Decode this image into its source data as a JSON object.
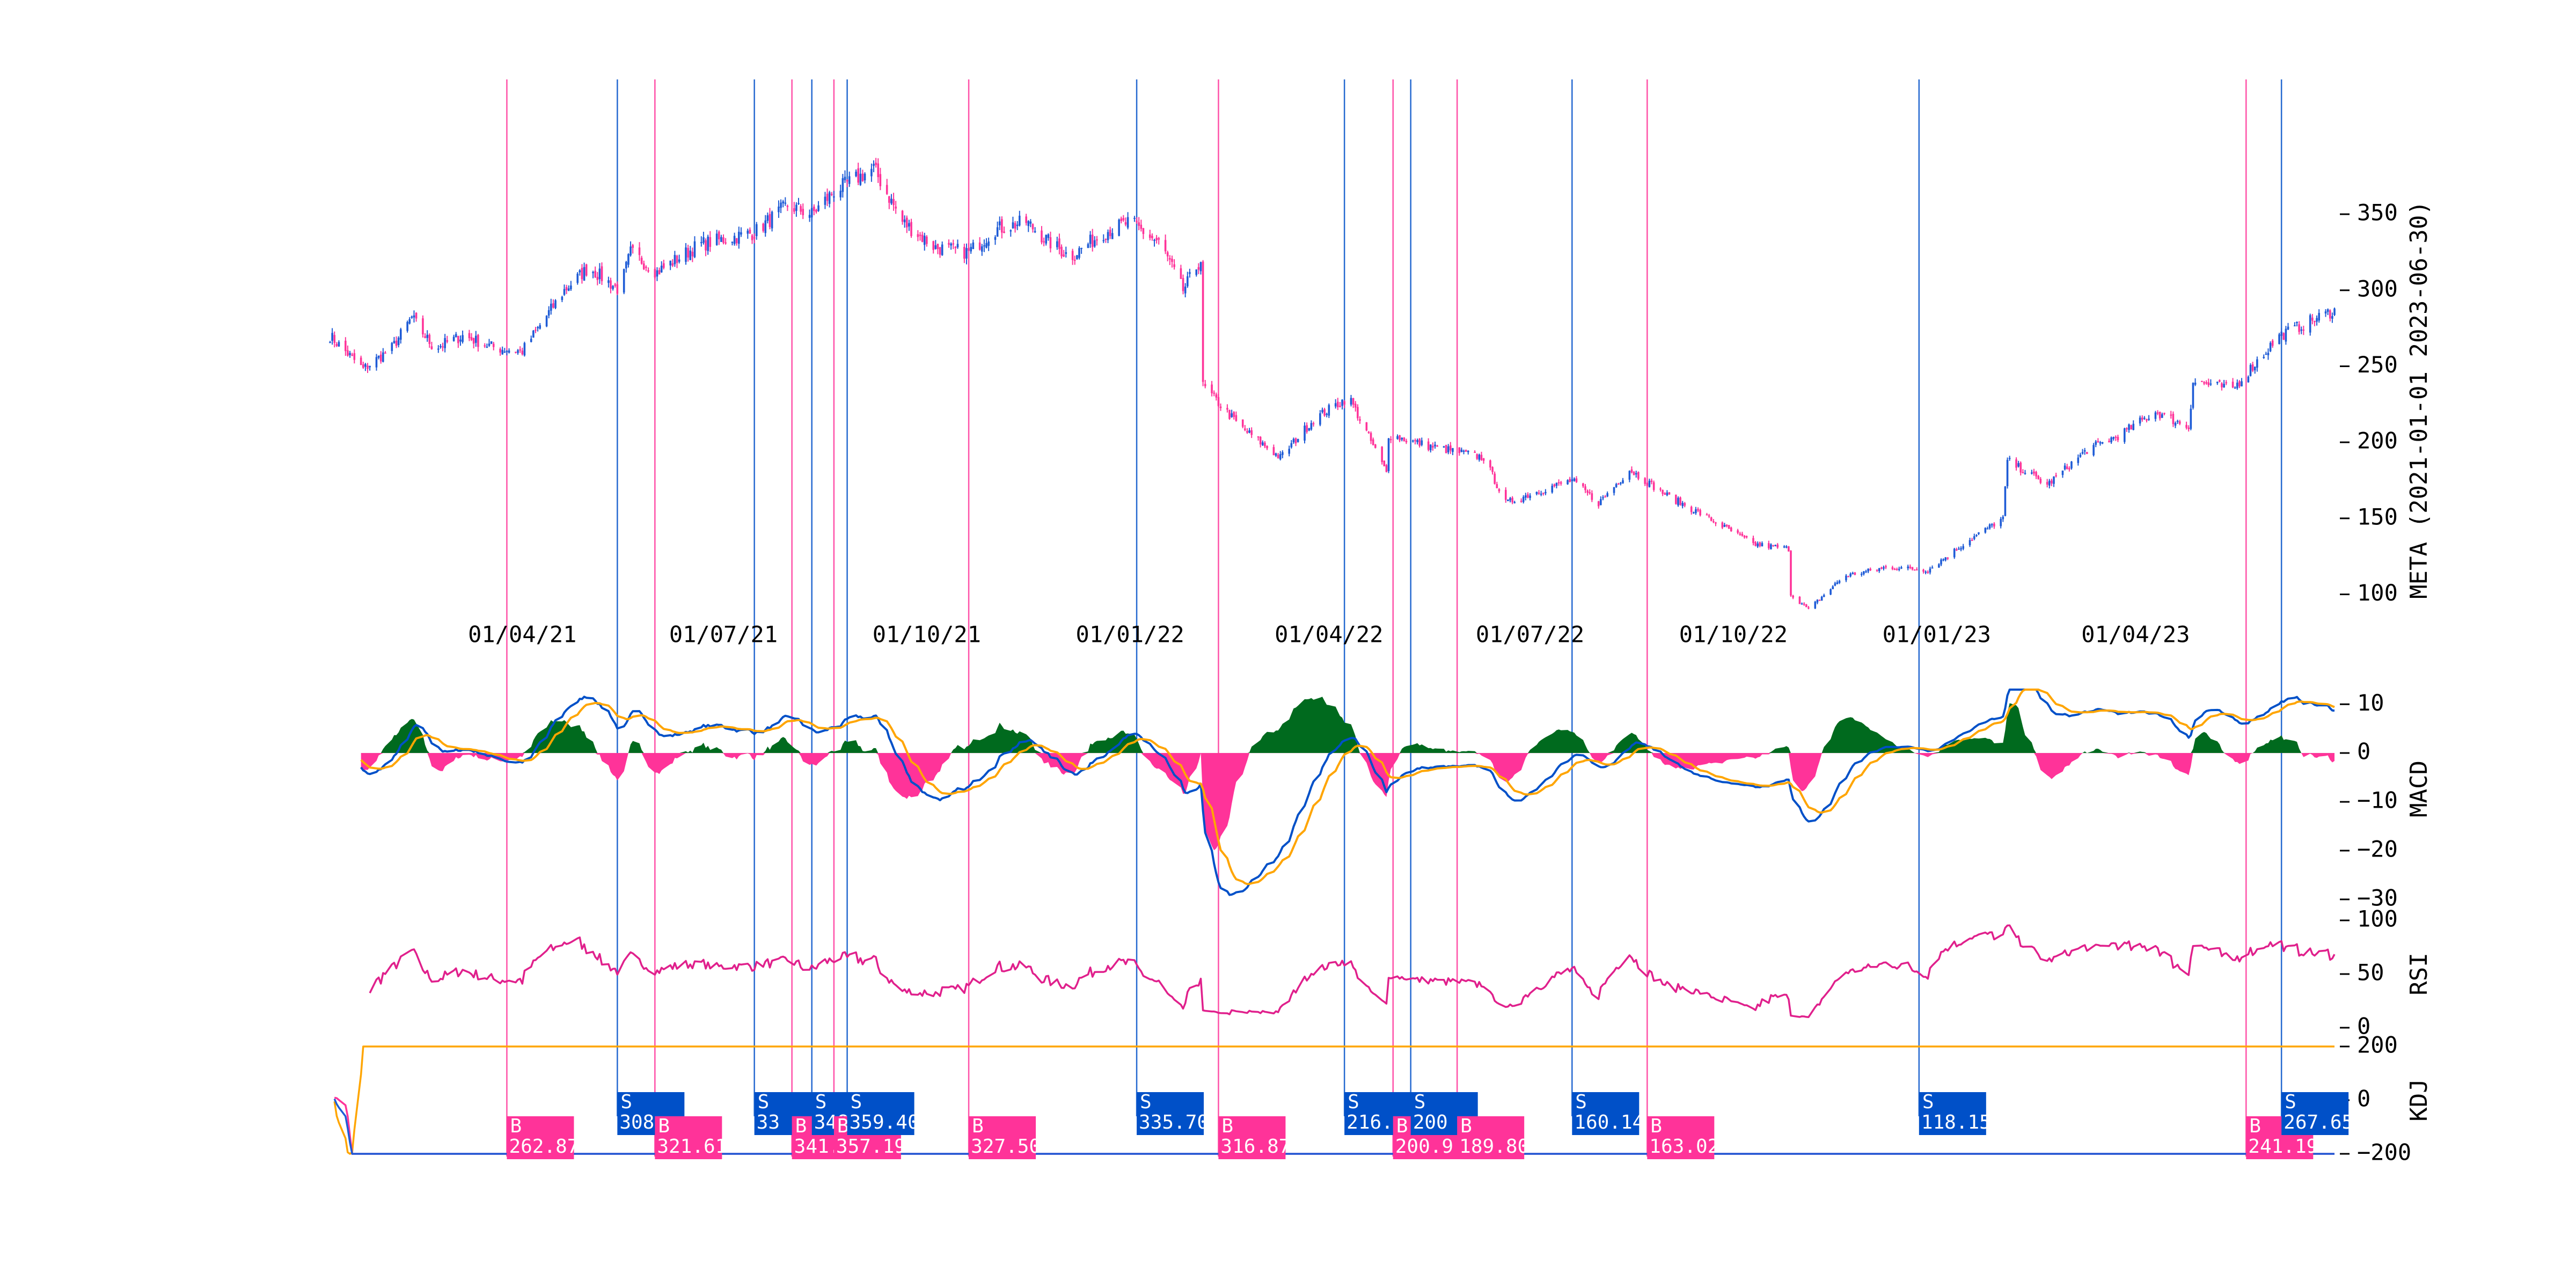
{
  "colors": {
    "up": "#1e5bd6",
    "down": "#ff3399",
    "buy": "#ff3399",
    "sell": "#0050c8",
    "macd_line": "#0050c8",
    "signal_line": "#ffa500",
    "hist_pos": "#006a1e",
    "hist_neg": "#ff3399",
    "rsi": "#e0208c",
    "k": "#1e5bd6",
    "d": "#ff3399",
    "j": "#ffa500"
  },
  "chart_data": [
    {
      "type": "candlestick",
      "ylabel": "META (2021-01-01 2023-06-30)",
      "ylim": [
        85,
        385
      ],
      "yticks": [
        "100",
        "150",
        "200",
        "250",
        "300",
        "350"
      ],
      "x_tick_labels": [
        "01/04/21",
        "01/07/21",
        "01/10/21",
        "01/01/22",
        "01/04/22",
        "01/07/22",
        "01/10/22",
        "01/01/23",
        "01/04/23"
      ],
      "x_tick_dates": [
        "2021-04-01",
        "2021-07-01",
        "2021-10-01",
        "2022-01-01",
        "2022-04-01",
        "2022-07-01",
        "2022-10-01",
        "2023-01-01",
        "2023-04-01"
      ],
      "price_anchors": [
        [
          "2021-01-04",
          270
        ],
        [
          "2021-01-19",
          248
        ],
        [
          "2021-02-01",
          262
        ],
        [
          "2021-02-10",
          282
        ],
        [
          "2021-02-20",
          262
        ],
        [
          "2021-03-05",
          270
        ],
        [
          "2021-03-20",
          262
        ],
        [
          "2021-04-01",
          260
        ],
        [
          "2021-04-20",
          300
        ],
        [
          "2021-05-01",
          315
        ],
        [
          "2021-05-15",
          300
        ],
        [
          "2021-05-20",
          325
        ],
        [
          "2021-06-01",
          312
        ],
        [
          "2021-06-20",
          330
        ],
        [
          "2021-07-15",
          338
        ],
        [
          "2021-07-30",
          356
        ],
        [
          "2021-08-10",
          350
        ],
        [
          "2021-08-20",
          365
        ],
        [
          "2021-09-01",
          375
        ],
        [
          "2021-09-07",
          380
        ],
        [
          "2021-09-20",
          345
        ],
        [
          "2021-10-05",
          328
        ],
        [
          "2021-10-20",
          325
        ],
        [
          "2021-11-01",
          340
        ],
        [
          "2021-11-15",
          345
        ],
        [
          "2021-11-25",
          332
        ],
        [
          "2021-12-05",
          322
        ],
        [
          "2021-12-20",
          338
        ],
        [
          "2022-01-01",
          345
        ],
        [
          "2022-01-15",
          330
        ],
        [
          "2022-01-25",
          300
        ],
        [
          "2022-02-02",
          320
        ],
        [
          "2022-02-03",
          237
        ],
        [
          "2022-02-20",
          210
        ],
        [
          "2022-03-10",
          190
        ],
        [
          "2022-03-25",
          215
        ],
        [
          "2022-04-10",
          230
        ],
        [
          "2022-04-27",
          180
        ],
        [
          "2022-04-28",
          205
        ],
        [
          "2022-05-15",
          198
        ],
        [
          "2022-06-10",
          190
        ],
        [
          "2022-06-20",
          160
        ],
        [
          "2022-07-05",
          168
        ],
        [
          "2022-07-20",
          175
        ],
        [
          "2022-08-01",
          160
        ],
        [
          "2022-08-15",
          182
        ],
        [
          "2022-09-01",
          165
        ],
        [
          "2022-09-20",
          150
        ],
        [
          "2022-10-10",
          133
        ],
        [
          "2022-10-26",
          130
        ],
        [
          "2022-10-27",
          100
        ],
        [
          "2022-11-04",
          90
        ],
        [
          "2022-11-20",
          112
        ],
        [
          "2022-12-10",
          118
        ],
        [
          "2022-12-28",
          116
        ],
        [
          "2023-01-15",
          135
        ],
        [
          "2023-01-31",
          150
        ],
        [
          "2023-02-02",
          188
        ],
        [
          "2023-02-20",
          172
        ],
        [
          "2023-03-10",
          195
        ],
        [
          "2023-03-25",
          205
        ],
        [
          "2023-04-10",
          220
        ],
        [
          "2023-04-25",
          210
        ],
        [
          "2023-04-27",
          240
        ],
        [
          "2023-05-15",
          235
        ],
        [
          "2023-06-05",
          270
        ],
        [
          "2023-06-30",
          287
        ]
      ]
    },
    {
      "type": "line",
      "ylabel": "MACD",
      "ylim": [
        -31,
        13
      ],
      "yticks": [
        "10",
        "0",
        "−10",
        "−20",
        "−30"
      ],
      "series": [
        {
          "key": "macd"
        },
        {
          "key": "signal"
        },
        {
          "key": "histogram",
          "type": "area"
        }
      ]
    },
    {
      "type": "line",
      "ylabel": "RSI",
      "ylim": [
        0,
        100
      ],
      "yticks": [
        "100",
        "50",
        "0"
      ]
    },
    {
      "type": "line",
      "ylabel": "KDJ",
      "ylim": [
        -200,
        200
      ],
      "yticks": [
        "200",
        "0",
        "−200"
      ],
      "series": [
        {
          "key": "K"
        },
        {
          "key": "D"
        },
        {
          "key": "J"
        }
      ]
    }
  ],
  "signals": [
    {
      "type": "B",
      "date": "2021-03-25",
      "price": "262.87"
    },
    {
      "type": "S",
      "date": "2021-05-14",
      "price": "308"
    },
    {
      "type": "B",
      "date": "2021-05-31",
      "price": "321.61"
    },
    {
      "type": "S",
      "date": "2021-07-15",
      "price": "33"
    },
    {
      "type": "B",
      "date": "2021-08-01",
      "price": "341.79"
    },
    {
      "type": "S",
      "date": "2021-08-10",
      "price": "348"
    },
    {
      "type": "B",
      "date": "2021-08-20",
      "price": "357.19"
    },
    {
      "type": "S",
      "date": "2021-08-26",
      "price": "359.40"
    },
    {
      "type": "B",
      "date": "2021-10-20",
      "price": "327.50"
    },
    {
      "type": "S",
      "date": "2022-01-04",
      "price": "335.70"
    },
    {
      "type": "B",
      "date": "2022-02-10",
      "price": "316.87"
    },
    {
      "type": "S",
      "date": "2022-04-08",
      "price": "216."
    },
    {
      "type": "B",
      "date": "2022-04-30",
      "price": "200.9"
    },
    {
      "type": "S",
      "date": "2022-05-08",
      "price": "200"
    },
    {
      "type": "B",
      "date": "2022-05-29",
      "price": "189.80"
    },
    {
      "type": "S",
      "date": "2022-07-20",
      "price": "160.14"
    },
    {
      "type": "B",
      "date": "2022-08-23",
      "price": "163.02"
    },
    {
      "type": "S",
      "date": "2022-12-24",
      "price": "118.15"
    },
    {
      "type": "B",
      "date": "2023-05-21",
      "price": "241.19"
    },
    {
      "type": "S",
      "date": "2023-06-06",
      "price": "267.65"
    }
  ]
}
